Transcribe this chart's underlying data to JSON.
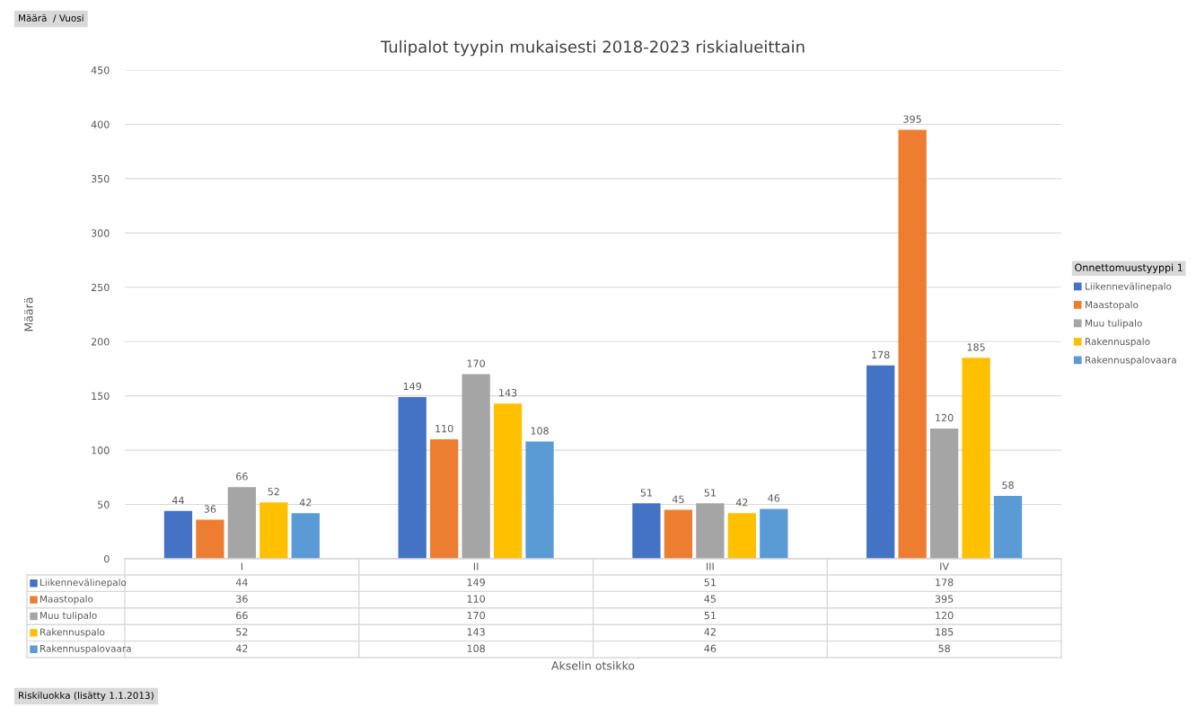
{
  "chart_data": {
    "type": "bar",
    "title": "Tulipalot tyypin mukaisesti 2018-2023 riskialueittain",
    "legend_title": "Onnettomuustyyppi 1",
    "annotations": [
      "Määrä  / Vuosi",
      "Riskiluokka (lisätty 1.1.2013)",
      "Määrä",
      "Akselin otsikko",
      "44",
      "149",
      "51",
      "178",
      "36",
      "110",
      "45",
      "395",
      "66",
      "170",
      "51",
      "120",
      "52",
      "143",
      "42",
      "185",
      "42",
      "108",
      "46",
      "58"
    ],
    "categories": [
      "I",
      "II",
      "III",
      "IV"
    ],
    "series": [
      {
        "name": "Liikennevälinepalo",
        "color": "#4472c4",
        "values": [
          44,
          149,
          51,
          178
        ],
        "value_labels": [
          "44",
          "149",
          "51",
          "178"
        ]
      },
      {
        "name": "Maastopalo",
        "color": "#ed7d31",
        "values": [
          36,
          110,
          45,
          395
        ],
        "value_labels": [
          "36",
          "110",
          "45",
          "395"
        ]
      },
      {
        "name": "Muu tulipalo",
        "color": "#a5a5a5",
        "values": [
          66,
          170,
          51,
          120
        ],
        "value_labels": [
          "66",
          "170",
          "51",
          "120"
        ]
      },
      {
        "name": "Rakennuspalo",
        "color": "#ffc000",
        "values": [
          52,
          143,
          42,
          185
        ],
        "value_labels": [
          "52",
          "143",
          "42",
          "185"
        ]
      },
      {
        "name": "Rakennuspalovaara",
        "color": "#5b9bd5",
        "values": [
          42,
          108,
          46,
          58
        ],
        "value_labels": [
          "42",
          "108",
          "46",
          "58"
        ]
      }
    ],
    "ylim": [
      0,
      450
    ],
    "yticks": [
      0,
      50,
      100,
      150,
      200,
      250,
      300,
      350,
      400,
      450
    ],
    "grid": "y",
    "legend": "right",
    "data_labels": true
  }
}
